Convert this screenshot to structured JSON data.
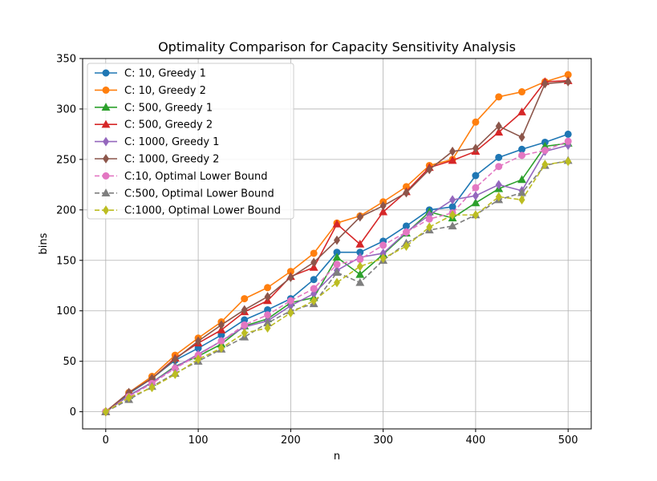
{
  "chart_data": {
    "type": "line",
    "title": "Optimality Comparison for Capacity Sensitivity Analysis",
    "xlabel": "n",
    "ylabel": "bins",
    "xlim": [
      -25,
      525
    ],
    "ylim": [
      -17,
      350
    ],
    "xticks": [
      0,
      100,
      200,
      300,
      400,
      500
    ],
    "yticks": [
      0,
      50,
      100,
      150,
      200,
      250,
      300,
      350
    ],
    "grid": true,
    "legend_position": "upper-left",
    "x": [
      0,
      25,
      50,
      75,
      100,
      125,
      150,
      175,
      200,
      225,
      250,
      275,
      300,
      325,
      350,
      375,
      400,
      425,
      450,
      475,
      500
    ],
    "series": [
      {
        "name": "C: 10, Greedy 1",
        "color": "#1f77b4",
        "marker": "circle",
        "dashed": false,
        "values": [
          0,
          18,
          33,
          51,
          63,
          76,
          91,
          101,
          112,
          131,
          158,
          158,
          169,
          184,
          200,
          203,
          234,
          252,
          260,
          267,
          275
        ]
      },
      {
        "name": "C: 10, Greedy 2",
        "color": "#ff7f0e",
        "marker": "circle",
        "dashed": false,
        "values": [
          0,
          19,
          35,
          56,
          73,
          89,
          112,
          123,
          139,
          157,
          187,
          194,
          208,
          223,
          244,
          250,
          287,
          312,
          317,
          327,
          334
        ]
      },
      {
        "name": "C: 500, Greedy 1",
        "color": "#2ca02c",
        "marker": "triangle",
        "dashed": false,
        "values": [
          0,
          16,
          29,
          45,
          55,
          67,
          85,
          92,
          108,
          113,
          153,
          136,
          156,
          177,
          198,
          192,
          207,
          221,
          230,
          263,
          266
        ]
      },
      {
        "name": "C: 500, Greedy 2",
        "color": "#d62728",
        "marker": "triangle",
        "dashed": false,
        "values": [
          0,
          19,
          33,
          53,
          68,
          81,
          99,
          110,
          134,
          143,
          186,
          166,
          198,
          218,
          242,
          249,
          258,
          277,
          297,
          327,
          328
        ]
      },
      {
        "name": "C: 1000, Greedy 1",
        "color": "#9467bd",
        "marker": "diamond",
        "dashed": false,
        "values": [
          0,
          16,
          29,
          44,
          57,
          70,
          84,
          90,
          105,
          117,
          140,
          153,
          157,
          178,
          195,
          210,
          214,
          225,
          219,
          258,
          264
        ]
      },
      {
        "name": "C: 1000, Greedy 2",
        "color": "#8c564b",
        "marker": "diamond",
        "dashed": false,
        "values": [
          0,
          19,
          33,
          52,
          70,
          86,
          101,
          114,
          133,
          148,
          170,
          193,
          204,
          217,
          240,
          258,
          261,
          283,
          272,
          325,
          327
        ]
      },
      {
        "name": "C:10, Optimal Lower Bound",
        "color": "#e377c2",
        "marker": "circle",
        "dashed": true,
        "values": [
          0,
          15,
          28,
          43,
          56,
          70,
          86,
          96,
          110,
          122,
          146,
          151,
          165,
          178,
          191,
          197,
          222,
          243,
          254,
          259,
          268
        ]
      },
      {
        "name": "C:500, Optimal Lower Bound",
        "color": "#7f7f7f",
        "marker": "triangle",
        "dashed": true,
        "values": [
          0,
          12,
          25,
          38,
          50,
          62,
          74,
          88,
          100,
          107,
          138,
          128,
          150,
          167,
          180,
          184,
          195,
          210,
          217,
          244,
          249
        ]
      },
      {
        "name": "C:1000, Optimal Lower Bound",
        "color": "#bcbd22",
        "marker": "diamond",
        "dashed": true,
        "values": [
          0,
          14,
          24,
          37,
          52,
          63,
          78,
          83,
          98,
          110,
          128,
          144,
          152,
          164,
          183,
          195,
          195,
          213,
          210,
          245,
          248
        ]
      }
    ]
  }
}
